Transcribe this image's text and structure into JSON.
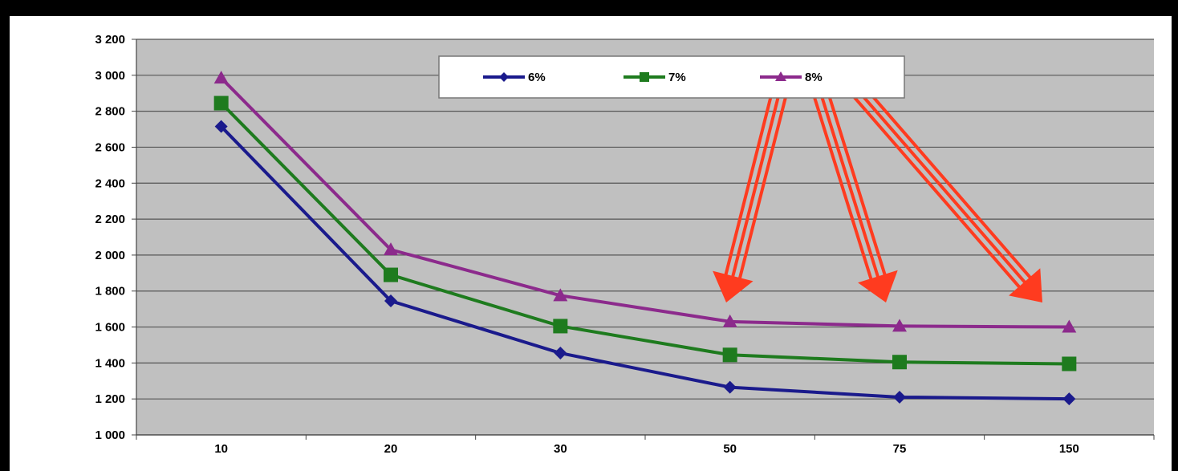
{
  "chart_data": {
    "type": "line",
    "title": "",
    "xlabel": "",
    "ylabel": "",
    "categories": [
      "10",
      "20",
      "30",
      "50",
      "75",
      "150"
    ],
    "ylim": [
      1000,
      3200
    ],
    "yticks": [
      1000,
      1200,
      1400,
      1600,
      1800,
      2000,
      2200,
      2400,
      2600,
      2800,
      3000,
      3200
    ],
    "ytick_labels": [
      "1 000",
      "1 200",
      "1 400",
      "1 600",
      "1 800",
      "2 000",
      "2 200",
      "2 400",
      "2 600",
      "2 800",
      "3 000",
      "3 200"
    ],
    "grid": true,
    "legend_position": "top-center",
    "plot_background": "#c0c0c0",
    "series": [
      {
        "name": "6%",
        "values": [
          2715,
          1745,
          1455,
          1265,
          1210,
          1200
        ],
        "color": "#1a1a8c",
        "marker": "diamond"
      },
      {
        "name": "7%",
        "values": [
          2845,
          1890,
          1605,
          1445,
          1405,
          1395
        ],
        "color": "#1e7b1e",
        "marker": "square"
      },
      {
        "name": "8%",
        "values": [
          2985,
          2030,
          1775,
          1630,
          1605,
          1600
        ],
        "color": "#8c2a8c",
        "marker": "triangle"
      }
    ],
    "annotations": {
      "arrows_color": "#ff3b1f",
      "arrows_point_to": [
        "50",
        "75",
        "150"
      ]
    }
  }
}
